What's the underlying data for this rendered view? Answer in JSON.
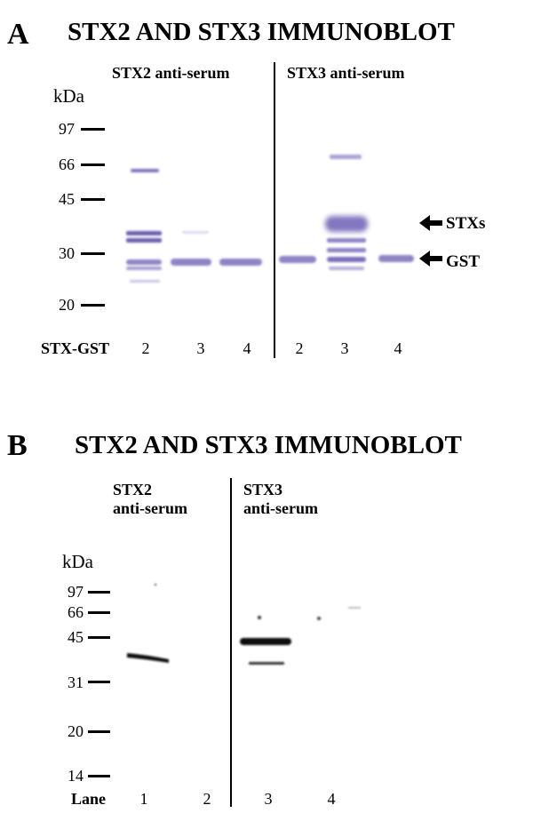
{
  "panel_a": {
    "letter": "A",
    "title": "STX2 AND STX3 IMMUNOBLOT",
    "group_left": "STX2 anti-serum",
    "group_right": "STX3 anti-serum",
    "kda_label": "kDa",
    "markers": [
      "97",
      "66",
      "45",
      "30",
      "20"
    ],
    "lane_row_label": "STX-GST",
    "lanes": [
      "2",
      "3",
      "4",
      "2",
      "3",
      "4"
    ],
    "arrows": [
      "STXs",
      "GST"
    ],
    "band_color": "#8e84c4"
  },
  "panel_b": {
    "letter": "B",
    "title": "STX2 AND STX3 IMMUNOBLOT",
    "group_left_line1": "STX2",
    "group_left_line2": "anti-serum",
    "group_right_line1": "STX3",
    "group_right_line2": "anti-serum",
    "kda_label": "kDa",
    "markers": [
      "97",
      "66",
      "45",
      "31",
      "20",
      "14"
    ],
    "lane_row_label": "Lane",
    "lanes": [
      "1",
      "2",
      "3",
      "4"
    ],
    "band_color": "#111111"
  }
}
